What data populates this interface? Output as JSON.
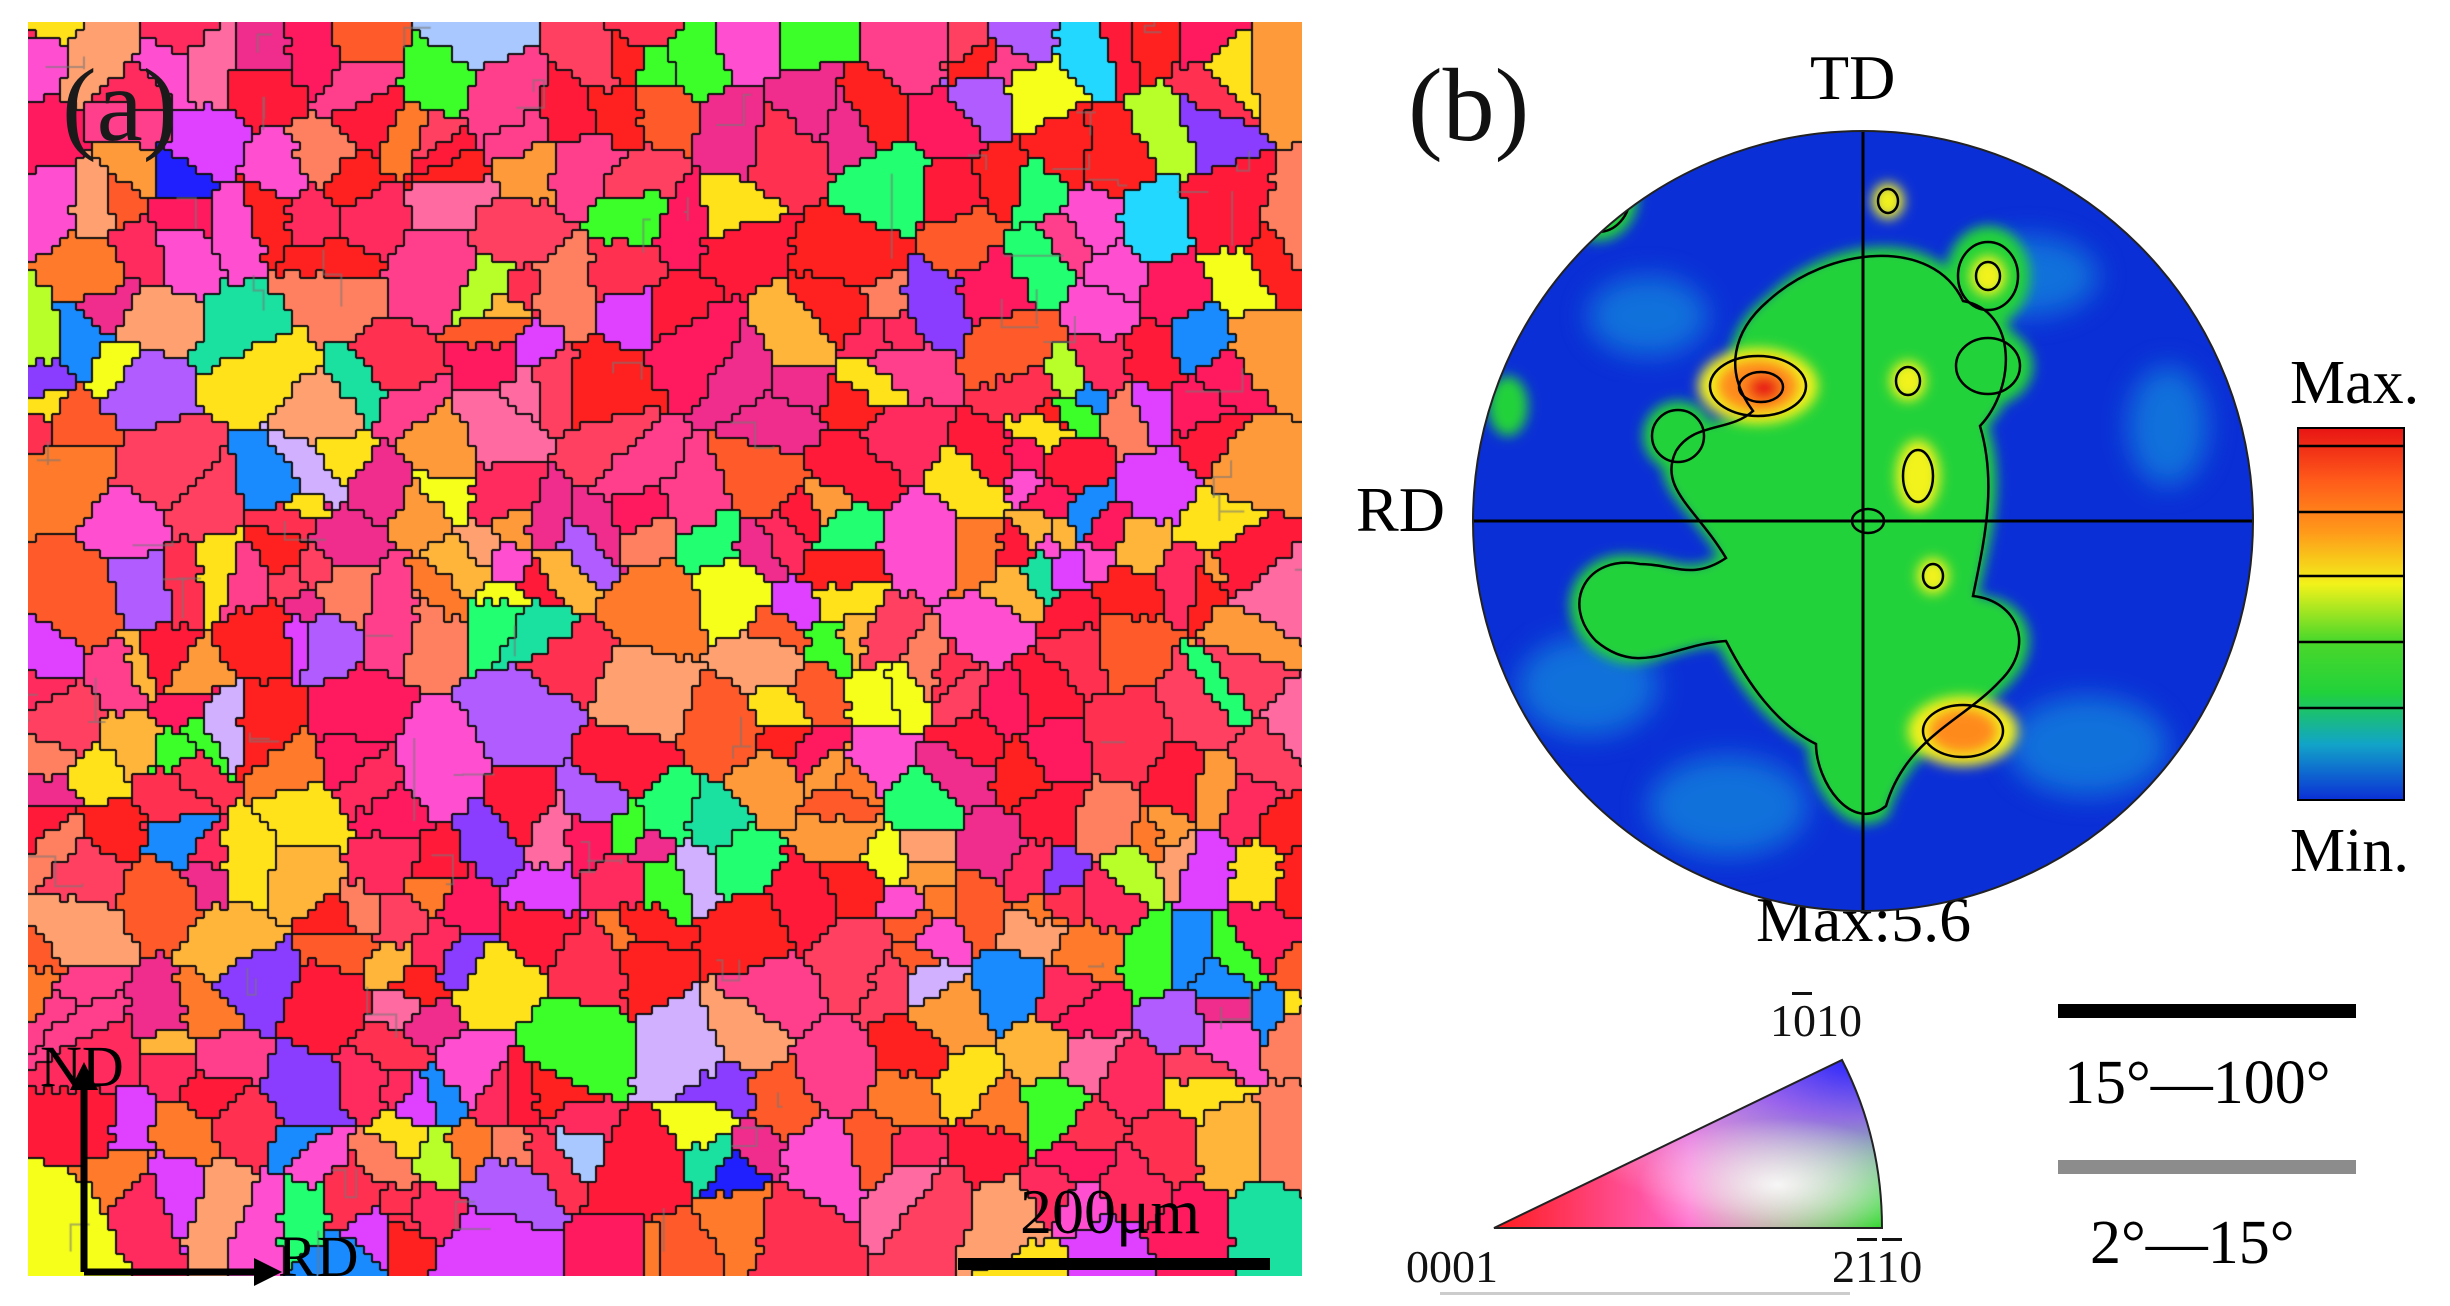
{
  "panel_a": {
    "label": "(a)",
    "nd_label": "ND",
    "rd_label": "RD",
    "scale_bar_label": "200μm"
  },
  "panel_b": {
    "label": "(b)",
    "top_label": "TD",
    "left_label": "RD",
    "max_text": "Max:5.6",
    "legend_max": "Max.",
    "legend_min": "Min."
  },
  "ipf_key": {
    "top": "1010",
    "bottom_left": "0001",
    "bottom_right": "2110"
  },
  "boundary_legend": {
    "high_angle": "15°—100°",
    "low_angle": "2°—15°",
    "high_color": "#000000",
    "low_color": "#8c8c8c"
  },
  "colors": {
    "pf_background": "#0b2fd6",
    "pf_green": "#22d23a",
    "pf_yellow": "#f2f21a",
    "pf_orange": "#ff8a1a",
    "pf_red": "#e81414"
  }
}
